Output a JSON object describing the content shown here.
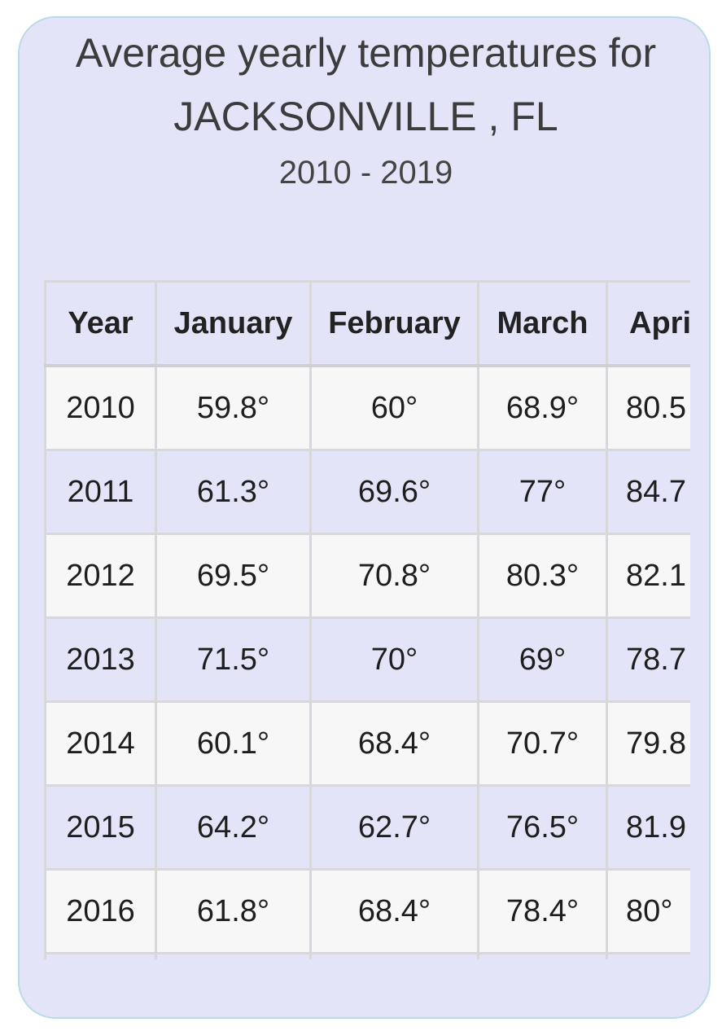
{
  "title_line1": "Average yearly temperatures for",
  "title_line2": "JACKSONVILLE , FL",
  "subtitle": "2010 - 2019",
  "table": {
    "headers": [
      "Year",
      "January",
      "February",
      "March",
      "Apri"
    ],
    "rows": [
      [
        "2010",
        "59.8°",
        "60°",
        "68.9°",
        "80.5"
      ],
      [
        "2011",
        "61.3°",
        "69.6°",
        "77°",
        "84.7"
      ],
      [
        "2012",
        "69.5°",
        "70.8°",
        "80.3°",
        "82.1"
      ],
      [
        "2013",
        "71.5°",
        "70°",
        "69°",
        "78.7"
      ],
      [
        "2014",
        "60.1°",
        "68.4°",
        "70.7°",
        "79.8"
      ],
      [
        "2015",
        "64.2°",
        "62.7°",
        "76.5°",
        "81.9"
      ],
      [
        "2016",
        "61.8°",
        "68.4°",
        "78.4°",
        "80°"
      ]
    ]
  },
  "colors": {
    "card_background": "#e4e4f8",
    "card_border": "#b9dbe8",
    "row_alt_background": "#f7f7f8",
    "grid_line": "#d8d8dc",
    "title_text": "#3c3c3c"
  }
}
